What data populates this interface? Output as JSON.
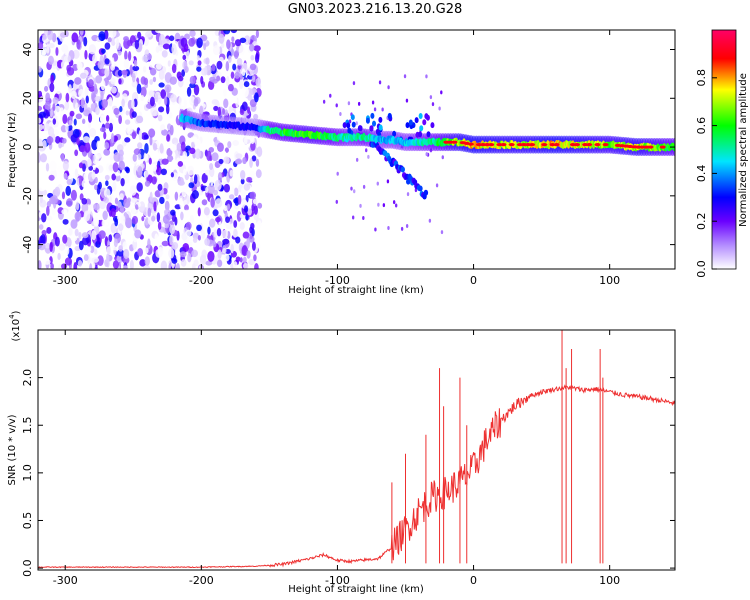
{
  "title": "GN03.2023.216.13.20.G28",
  "chart_data": [
    {
      "type": "heatmap",
      "xlabel": "Height of straight line (km)",
      "ylabel": "Frequency (Hz)",
      "xlim": [
        -320,
        148
      ],
      "ylim": [
        -50,
        48
      ],
      "x_ticks": [
        -300,
        -200,
        -100,
        0,
        100
      ],
      "x_tick_labels": [
        "-300",
        "-200",
        "-100",
        "0",
        "100"
      ],
      "y_ticks": [
        -40,
        -20,
        0,
        20,
        40
      ],
      "y_tick_labels": [
        "-40",
        "-20",
        "0",
        "20",
        "40"
      ],
      "colorbar": {
        "label": "Normalized spectral amplitude",
        "range": [
          0,
          1
        ],
        "ticks": [
          0.0,
          0.2,
          0.4,
          0.6,
          0.8
        ],
        "tick_labels": [
          "0.0",
          "0.2",
          "0.4",
          "0.6",
          "0.8"
        ],
        "colors": [
          "#ffffff",
          "#7a00ff",
          "#0000ff",
          "#00e5ff",
          "#00ff00",
          "#ffff00",
          "#ff0000",
          "#ff0066"
        ]
      },
      "ridge": {
        "x": [
          -215,
          -200,
          -180,
          -160,
          -150,
          -140,
          -120,
          -100,
          -90,
          -80,
          -70,
          -60,
          -50,
          -40,
          -30,
          -20,
          -10,
          0,
          20,
          40,
          60,
          80,
          100,
          120,
          148
        ],
        "y": [
          12,
          10,
          9,
          8,
          7,
          6,
          5,
          4,
          4,
          4,
          3,
          3,
          2,
          2,
          2,
          2,
          2,
          1,
          1,
          1,
          1,
          1,
          1,
          0,
          0
        ],
        "amplitude": [
          0.45,
          0.35,
          0.3,
          0.3,
          0.55,
          0.6,
          0.65,
          0.55,
          0.5,
          0.55,
          0.45,
          0.45,
          0.45,
          0.5,
          0.55,
          0.65,
          0.75,
          0.8,
          0.75,
          0.75,
          0.8,
          0.75,
          0.7,
          0.75,
          0.6
        ]
      },
      "noise_region_x": [
        -320,
        -157
      ]
    },
    {
      "type": "line",
      "xlabel": "Height of straight line (km)",
      "ylabel": "SNR (10 * v/v)",
      "y_multiplier": "(x10",
      "y_multiplier_exp": "4",
      "y_multiplier_close": ")",
      "xlim": [
        -320,
        148
      ],
      "ylim": [
        -0.02,
        2.5
      ],
      "x_ticks": [
        -300,
        -200,
        -100,
        0,
        100
      ],
      "x_tick_labels": [
        "-300",
        "-200",
        "-100",
        "0",
        "100"
      ],
      "y_ticks": [
        0.0,
        0.5,
        1.0,
        1.5,
        2.0
      ],
      "y_tick_labels": [
        "0.0",
        "0.5",
        "1.0",
        "1.5",
        "2.0"
      ],
      "color": "#ee3030",
      "x": [
        -320,
        -250,
        -200,
        -160,
        -140,
        -120,
        -110,
        -100,
        -90,
        -70,
        -60,
        -50,
        -40,
        -30,
        -20,
        -10,
        0,
        10,
        20,
        30,
        40,
        50,
        60,
        70,
        80,
        90,
        100,
        110,
        120,
        130,
        148
      ],
      "y": [
        0.01,
        0.01,
        0.01,
        0.02,
        0.04,
        0.1,
        0.14,
        0.08,
        0.07,
        0.1,
        0.22,
        0.4,
        0.6,
        0.75,
        0.8,
        0.9,
        1.05,
        1.35,
        1.55,
        1.7,
        1.8,
        1.85,
        1.88,
        1.9,
        1.87,
        1.88,
        1.85,
        1.82,
        1.8,
        1.78,
        1.73
      ]
    }
  ]
}
